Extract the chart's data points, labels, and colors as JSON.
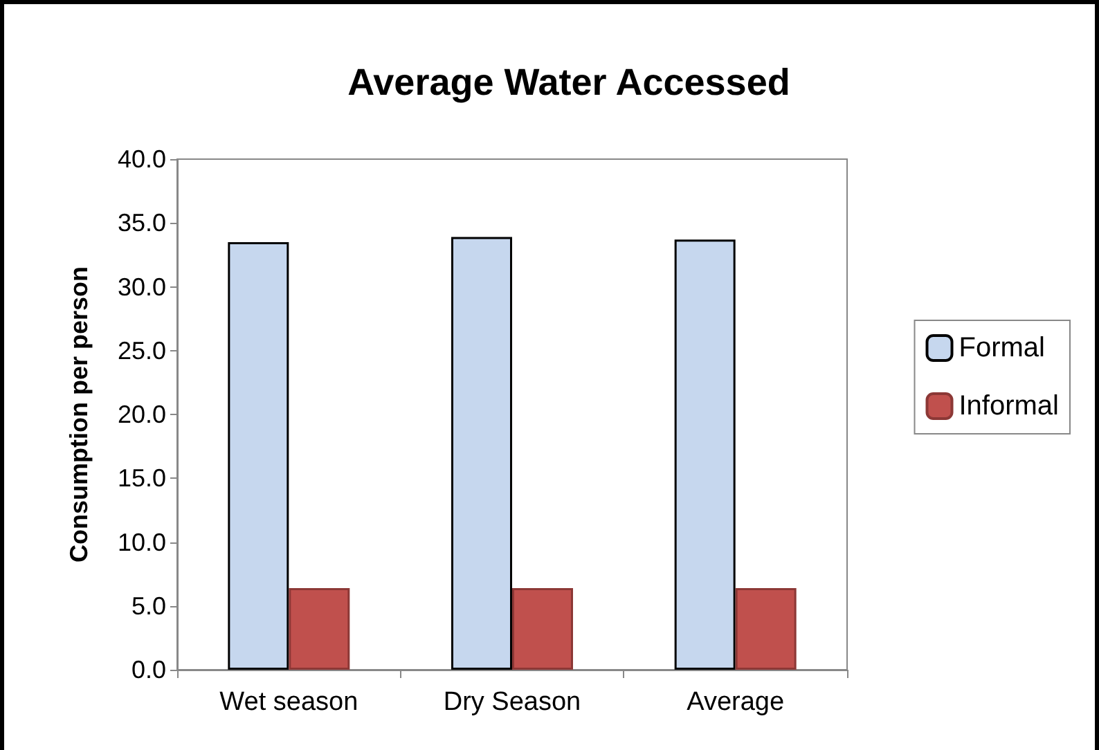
{
  "chart_data": {
    "type": "bar",
    "title": "Average Water Accessed",
    "ylabel": "Consumption per person",
    "categories": [
      "Wet season",
      "Dry Season",
      "Average"
    ],
    "series": [
      {
        "name": "Formal",
        "color": "#c6d7ee",
        "values": [
          33.5,
          33.9,
          33.7
        ]
      },
      {
        "name": "Informal",
        "color": "#c0504d",
        "values": [
          6.4,
          6.4,
          6.4
        ]
      }
    ],
    "ylim": [
      0,
      40
    ],
    "yticks": [
      {
        "value": 0,
        "label": "0.0"
      },
      {
        "value": 5,
        "label": "5.0"
      },
      {
        "value": 10,
        "label": "10.0"
      },
      {
        "value": 15,
        "label": "15.0"
      },
      {
        "value": 20,
        "label": "20.0"
      },
      {
        "value": 25,
        "label": "25.0"
      },
      {
        "value": 30,
        "label": "30.0"
      },
      {
        "value": 35,
        "label": "35.0"
      },
      {
        "value": 40,
        "label": "40.0"
      }
    ],
    "grid": false,
    "legend": "right"
  }
}
